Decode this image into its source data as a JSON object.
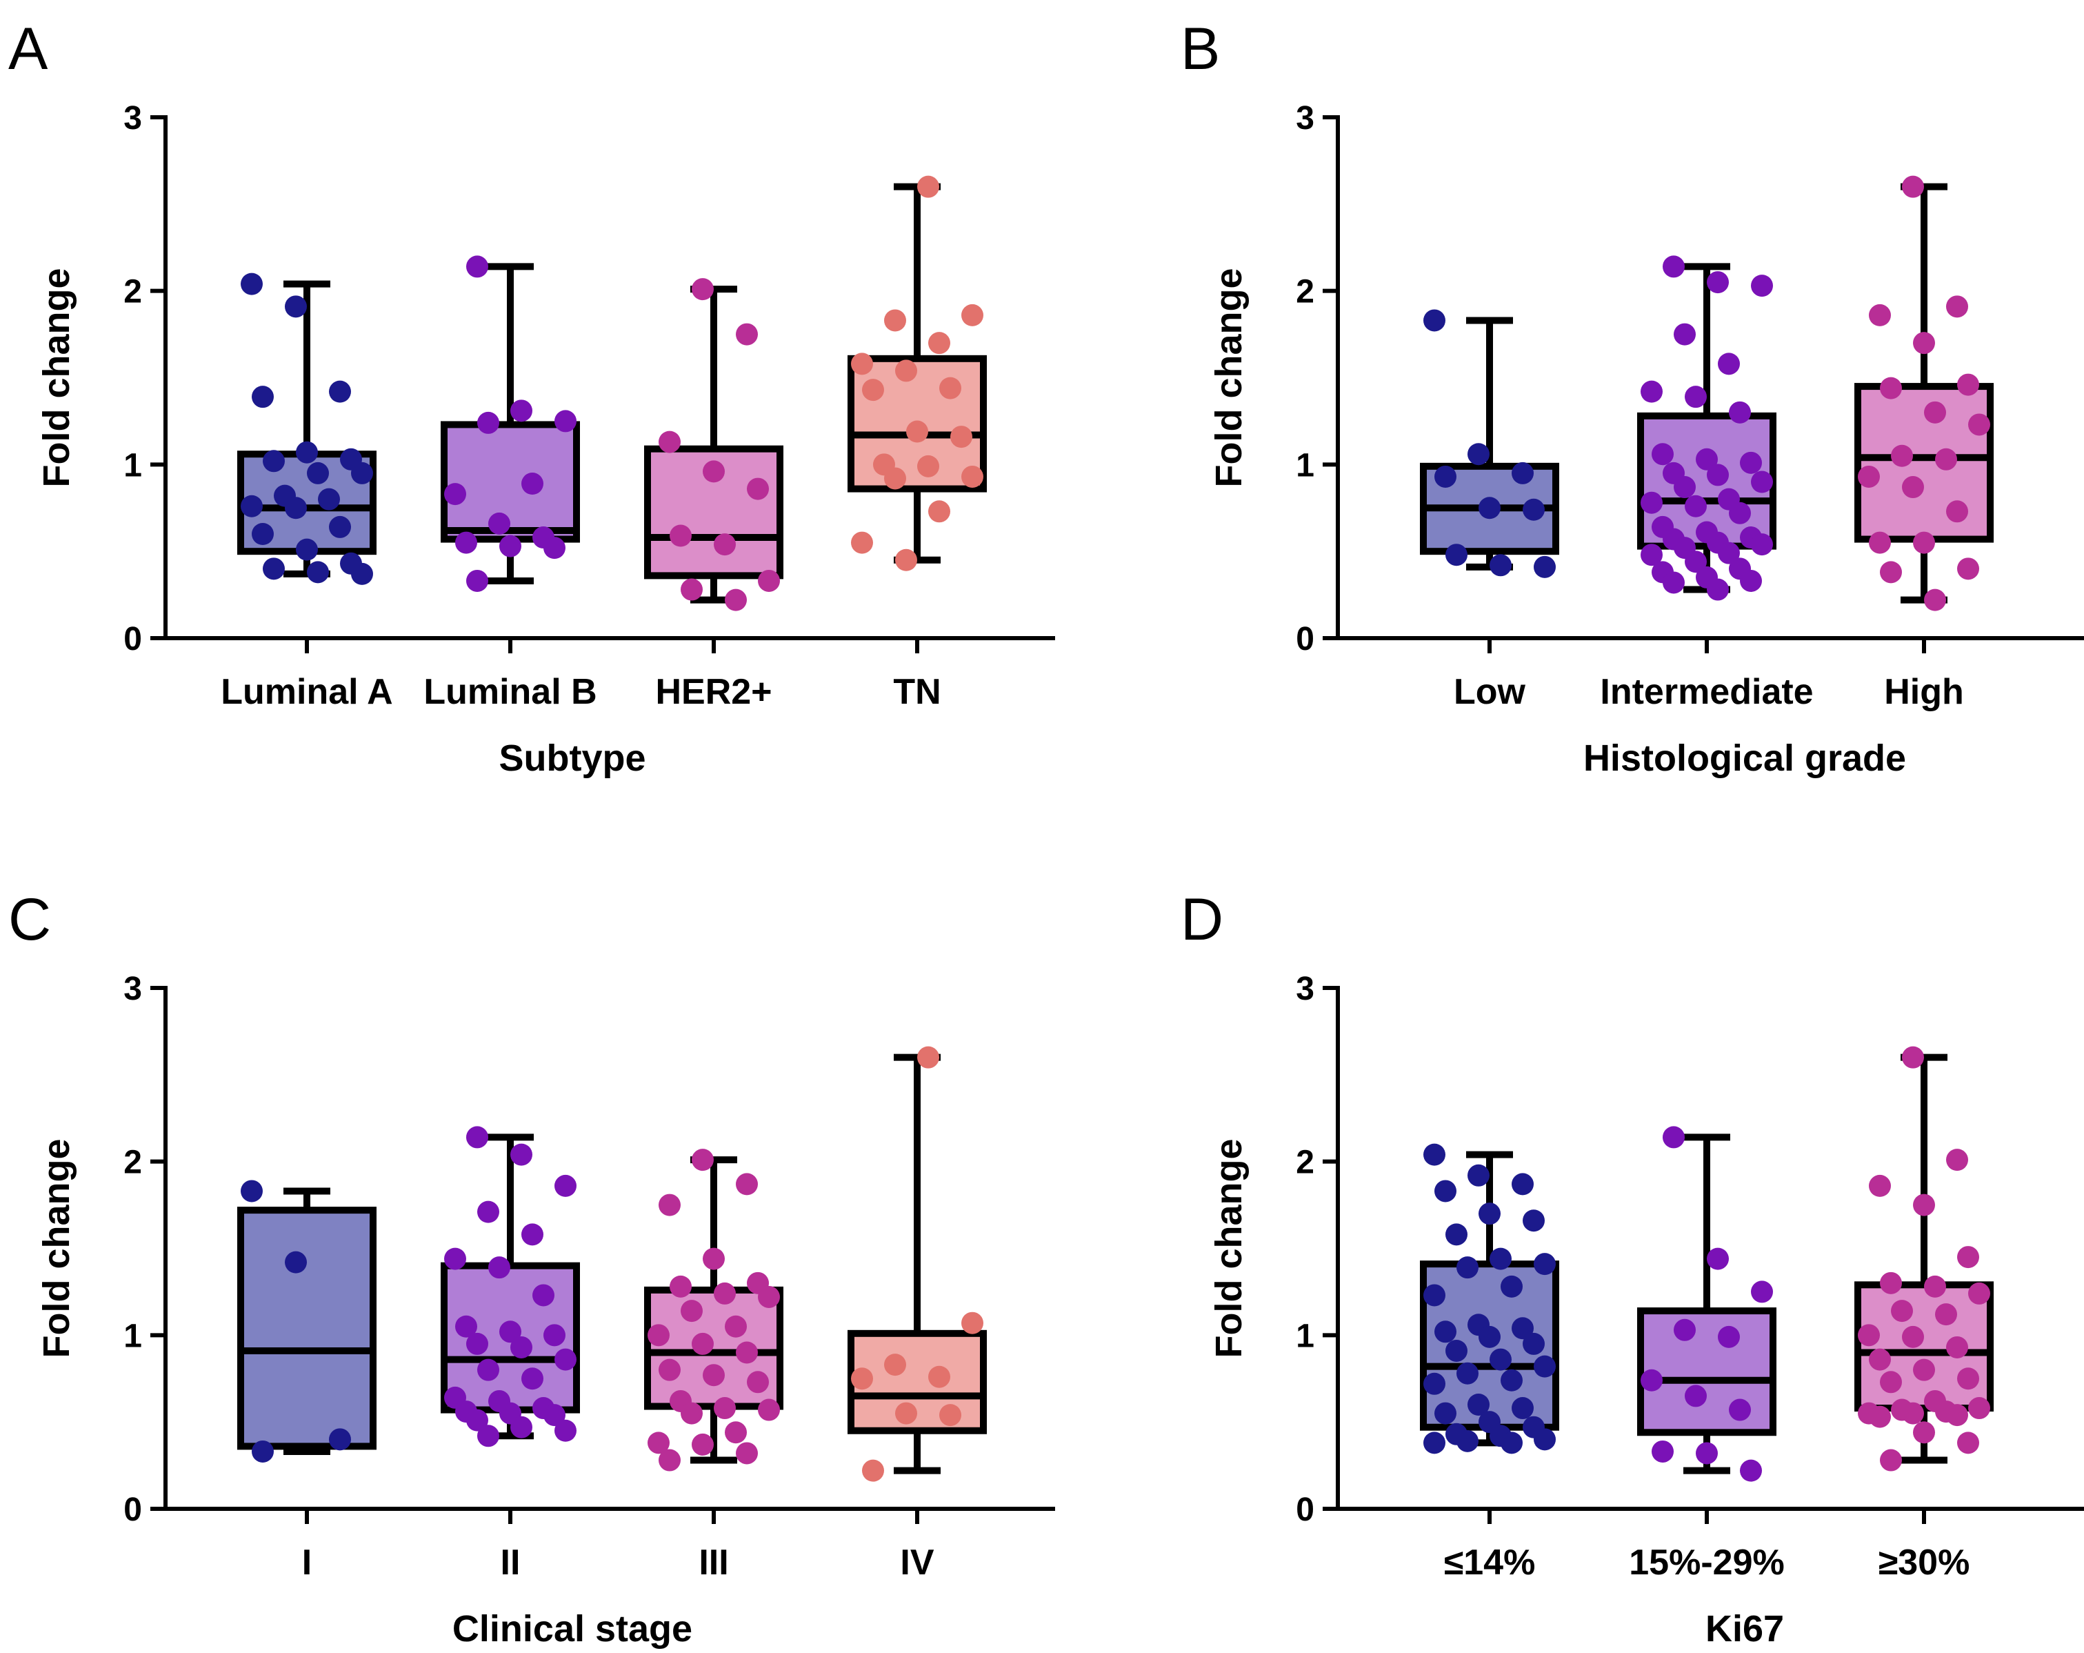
{
  "chart_data": [
    {
      "panel": "A",
      "type": "box",
      "xlabel": "Subtype",
      "ylabel": "Fold change",
      "ylim": [
        0,
        3
      ],
      "yticks": [
        0,
        1,
        2,
        3
      ],
      "categories": [
        "Luminal A",
        "Luminal B",
        "HER2+",
        "TN"
      ],
      "colors": [
        "#1c1a8c",
        "#7a12b6",
        "#b82e96",
        "#e2726c"
      ],
      "box_fills": [
        "#7f82c2",
        "#b07ed6",
        "#dc8ec9",
        "#f0aaa6"
      ],
      "boxes": [
        {
          "min": 0.37,
          "q1": 0.5,
          "median": 0.75,
          "q3": 1.06,
          "max": 2.04
        },
        {
          "min": 0.33,
          "q1": 0.57,
          "median": 0.62,
          "q3": 1.23,
          "max": 2.14
        },
        {
          "min": 0.22,
          "q1": 0.36,
          "median": 0.58,
          "q3": 1.09,
          "max": 2.01
        },
        {
          "min": 0.45,
          "q1": 0.86,
          "median": 1.17,
          "q3": 1.61,
          "max": 2.6
        }
      ],
      "points": [
        [
          2.04,
          1.91,
          1.42,
          1.39,
          1.07,
          1.03,
          1.02,
          0.95,
          0.95,
          0.82,
          0.8,
          0.76,
          0.75,
          0.64,
          0.6,
          0.51,
          0.43,
          0.4,
          0.38,
          0.37
        ],
        [
          2.14,
          1.31,
          1.25,
          1.24,
          0.89,
          0.83,
          0.66,
          0.58,
          0.55,
          0.53,
          0.52,
          0.33
        ],
        [
          2.01,
          1.75,
          1.13,
          0.96,
          0.86,
          0.59,
          0.54,
          0.33,
          0.28,
          0.22
        ],
        [
          2.6,
          1.86,
          1.83,
          1.7,
          1.58,
          1.54,
          1.44,
          1.43,
          1.19,
          1.16,
          1.0,
          0.99,
          0.93,
          0.92,
          0.73,
          0.55,
          0.45
        ]
      ]
    },
    {
      "panel": "B",
      "type": "box",
      "xlabel": "Histological grade",
      "ylabel": "Fold change",
      "ylim": [
        0,
        3
      ],
      "yticks": [
        0,
        1,
        2,
        3
      ],
      "categories": [
        "Low",
        "Intermediate",
        "High"
      ],
      "colors": [
        "#1c1a8c",
        "#7a12b6",
        "#b82e96"
      ],
      "box_fills": [
        "#7f82c2",
        "#b07ed6",
        "#dc8ec9"
      ],
      "boxes": [
        {
          "min": 0.41,
          "q1": 0.5,
          "median": 0.75,
          "q3": 0.99,
          "max": 1.83
        },
        {
          "min": 0.28,
          "q1": 0.53,
          "median": 0.79,
          "q3": 1.28,
          "max": 2.14
        },
        {
          "min": 0.22,
          "q1": 0.57,
          "median": 1.04,
          "q3": 1.45,
          "max": 2.6
        }
      ],
      "points": [
        [
          1.83,
          1.06,
          0.95,
          0.93,
          0.75,
          0.74,
          0.48,
          0.42,
          0.41
        ],
        [
          2.14,
          2.05,
          2.03,
          1.75,
          1.58,
          1.42,
          1.39,
          1.3,
          1.06,
          1.03,
          1.01,
          0.95,
          0.94,
          0.9,
          0.87,
          0.8,
          0.78,
          0.76,
          0.72,
          0.64,
          0.61,
          0.58,
          0.57,
          0.55,
          0.54,
          0.52,
          0.49,
          0.48,
          0.44,
          0.4,
          0.38,
          0.35,
          0.33,
          0.32,
          0.28
        ],
        [
          2.6,
          1.91,
          1.86,
          1.7,
          1.46,
          1.44,
          1.3,
          1.23,
          1.05,
          1.03,
          0.93,
          0.87,
          0.73,
          0.55,
          0.55,
          0.4,
          0.38,
          0.22
        ]
      ]
    },
    {
      "panel": "C",
      "type": "box",
      "xlabel": "Clinical stage",
      "ylabel": "Fold change",
      "ylim": [
        0,
        3
      ],
      "yticks": [
        0,
        1,
        2,
        3
      ],
      "categories": [
        "I",
        "II",
        "III",
        "IV"
      ],
      "colors": [
        "#1c1a8c",
        "#7a12b6",
        "#b82e96",
        "#e2726c"
      ],
      "box_fills": [
        "#7f82c2",
        "#b07ed6",
        "#dc8ec9",
        "#f0aaa6"
      ],
      "boxes": [
        {
          "min": 0.33,
          "q1": 0.36,
          "median": 0.91,
          "q3": 1.72,
          "max": 1.83
        },
        {
          "min": 0.42,
          "q1": 0.57,
          "median": 0.86,
          "q3": 1.4,
          "max": 2.14
        },
        {
          "min": 0.28,
          "q1": 0.59,
          "median": 0.9,
          "q3": 1.26,
          "max": 2.01
        },
        {
          "min": 0.22,
          "q1": 0.45,
          "median": 0.65,
          "q3": 1.01,
          "max": 2.6
        }
      ],
      "points": [
        [
          1.83,
          1.42,
          0.4,
          0.33
        ],
        [
          2.14,
          2.04,
          1.86,
          1.71,
          1.58,
          1.44,
          1.39,
          1.23,
          1.05,
          1.02,
          1.0,
          0.95,
          0.93,
          0.86,
          0.8,
          0.75,
          0.64,
          0.62,
          0.58,
          0.56,
          0.55,
          0.54,
          0.51,
          0.47,
          0.45,
          0.42
        ],
        [
          2.01,
          1.87,
          1.75,
          1.44,
          1.3,
          1.28,
          1.24,
          1.22,
          1.14,
          1.05,
          1.0,
          0.95,
          0.9,
          0.8,
          0.77,
          0.73,
          0.62,
          0.58,
          0.57,
          0.55,
          0.44,
          0.38,
          0.37,
          0.32,
          0.28
        ],
        [
          2.6,
          1.07,
          0.83,
          0.76,
          0.75,
          0.55,
          0.54,
          0.22
        ]
      ]
    },
    {
      "panel": "D",
      "type": "box",
      "xlabel": "Ki67",
      "ylabel": "Fold change",
      "ylim": [
        0,
        3
      ],
      "yticks": [
        0,
        1,
        2,
        3
      ],
      "categories": [
        "≤14%",
        "15%-29%",
        "≥30%"
      ],
      "colors": [
        "#1c1a8c",
        "#7a12b6",
        "#b82e96"
      ],
      "box_fills": [
        "#7f82c2",
        "#b07ed6",
        "#dc8ec9"
      ],
      "boxes": [
        {
          "min": 0.38,
          "q1": 0.47,
          "median": 0.82,
          "q3": 1.41,
          "max": 2.04
        },
        {
          "min": 0.22,
          "q1": 0.44,
          "median": 0.74,
          "q3": 1.14,
          "max": 2.14
        },
        {
          "min": 0.28,
          "q1": 0.58,
          "median": 0.9,
          "q3": 1.29,
          "max": 2.6
        }
      ],
      "points": [
        [
          2.04,
          1.92,
          1.87,
          1.83,
          1.7,
          1.66,
          1.58,
          1.44,
          1.41,
          1.39,
          1.28,
          1.23,
          1.06,
          1.04,
          1.02,
          0.99,
          0.95,
          0.91,
          0.86,
          0.82,
          0.78,
          0.74,
          0.72,
          0.6,
          0.58,
          0.55,
          0.5,
          0.47,
          0.43,
          0.42,
          0.4,
          0.39,
          0.38,
          0.38
        ],
        [
          2.14,
          1.44,
          1.25,
          1.03,
          0.99,
          0.74,
          0.65,
          0.57,
          0.33,
          0.32,
          0.22
        ],
        [
          2.6,
          2.01,
          1.86,
          1.75,
          1.45,
          1.3,
          1.28,
          1.24,
          1.14,
          1.12,
          1.0,
          0.99,
          0.93,
          0.86,
          0.8,
          0.75,
          0.73,
          0.62,
          0.58,
          0.57,
          0.56,
          0.55,
          0.55,
          0.54,
          0.53,
          0.44,
          0.38,
          0.28
        ]
      ]
    }
  ]
}
